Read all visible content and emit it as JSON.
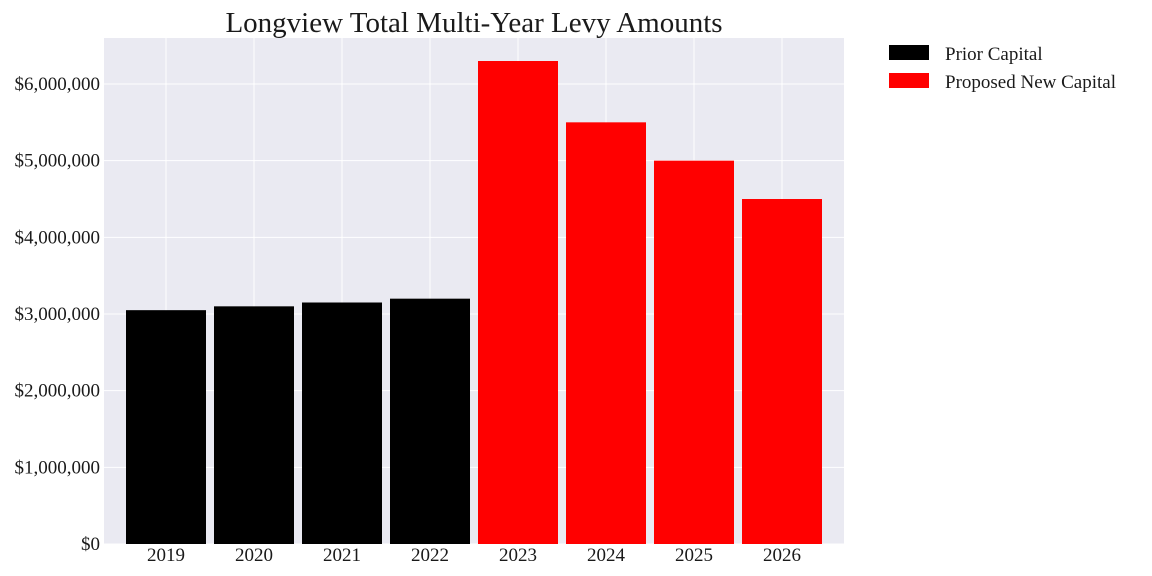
{
  "chart_data": {
    "type": "bar",
    "title": "Longview Total Multi-Year Levy Amounts",
    "xlabel": "",
    "ylabel": "",
    "categories": [
      "2019",
      "2020",
      "2021",
      "2022",
      "2023",
      "2024",
      "2025",
      "2026"
    ],
    "values": [
      3050000,
      3100000,
      3150000,
      3200000,
      6300000,
      5500000,
      5000000,
      4500000
    ],
    "bar_series": [
      "Prior Capital",
      "Prior Capital",
      "Prior Capital",
      "Prior Capital",
      "Proposed New Capital",
      "Proposed New Capital",
      "Proposed New Capital",
      "Proposed New Capital"
    ],
    "series": [
      {
        "name": "Prior Capital",
        "color": "#000000"
      },
      {
        "name": "Proposed New Capital",
        "color": "#ff0000"
      }
    ],
    "ylim": [
      0,
      6600000
    ],
    "yticks": [
      0,
      1000000,
      2000000,
      3000000,
      4000000,
      5000000,
      6000000
    ],
    "ytick_labels": [
      "$0",
      "$1,000,000",
      "$2,000,000",
      "$3,000,000",
      "$4,000,000",
      "$5,000,000",
      "$6,000,000"
    ],
    "grid": true,
    "legend_position": "outside-top-right",
    "plot_background": "#eaeaf2"
  }
}
